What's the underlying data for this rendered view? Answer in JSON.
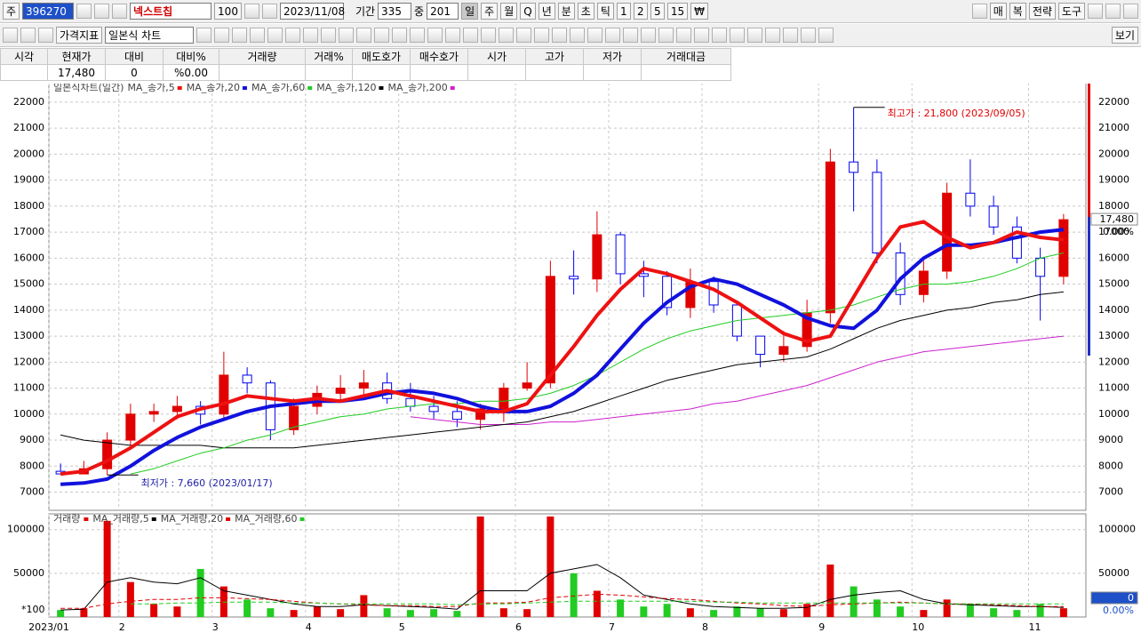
{
  "toolbar": {
    "code_label": "주",
    "code": "396270",
    "name": "넥스트칩",
    "count": "100",
    "date": "2023/11/08",
    "period_label": "기간",
    "period": "335",
    "mid_label": "중",
    "mid": "201",
    "periods": [
      "일",
      "주",
      "월",
      "Q",
      "년",
      "분",
      "초",
      "틱",
      "1",
      "2",
      "5",
      "15",
      "₩"
    ],
    "right_buttons": [
      "매",
      "복",
      "전략",
      "도구"
    ],
    "indicator_button": "가격지표",
    "chart_type": "일본식 차트",
    "view_button": "보기"
  },
  "quote_table": {
    "headers": [
      "시각",
      "현재가",
      "대비",
      "대비%",
      "거래량",
      "거래%",
      "매도호가",
      "매수호가",
      "시가",
      "고가",
      "저가",
      "거래대금"
    ],
    "values": [
      "17,480",
      "0",
      "%0.00"
    ]
  },
  "chart_data": [
    {
      "type": "candlestick",
      "title": "일본식차트(일간)",
      "open": [
        7800,
        7700,
        7900,
        9000,
        10000,
        10100,
        10300,
        10000,
        11500,
        11200,
        9400,
        10300,
        10800,
        11000,
        11200,
        10600,
        10300,
        10100,
        9800,
        10200,
        11000,
        11200,
        15300,
        15200,
        16900,
        15400,
        15300,
        14100,
        15100,
        14200,
        13000,
        12300,
        12600,
        13900,
        19700,
        19300,
        16200,
        14600,
        15500,
        18500,
        18000,
        17200,
        16000,
        15300
      ],
      "high": [
        8100,
        8200,
        9300,
        10400,
        10400,
        10700,
        10500,
        12400,
        11800,
        11300,
        10600,
        11100,
        11500,
        11700,
        11600,
        11200,
        10700,
        10500,
        10400,
        11200,
        12000,
        15900,
        16300,
        17800,
        17000,
        15900,
        15500,
        15600,
        15300,
        14300,
        13000,
        13200,
        14400,
        20200,
        21800,
        19800,
        16600,
        15900,
        18900,
        19800,
        18400,
        17600,
        16400,
        17700
      ],
      "low": [
        7700,
        7700,
        7660,
        8800,
        9700,
        9800,
        9600,
        9800,
        10800,
        9000,
        9200,
        10000,
        10500,
        10700,
        10400,
        10100,
        9800,
        9500,
        9400,
        9700,
        10900,
        11000,
        14600,
        14700,
        15000,
        14500,
        13800,
        13700,
        13900,
        12800,
        11800,
        12000,
        12400,
        13500,
        17800,
        15800,
        14200,
        14300,
        15200,
        17600,
        16900,
        15800,
        13600,
        15000
      ],
      "close": [
        7700,
        7900,
        9000,
        10000,
        10100,
        10300,
        10000,
        11500,
        11200,
        9400,
        10300,
        10800,
        11000,
        11200,
        10600,
        10300,
        10100,
        9800,
        10200,
        11000,
        11200,
        15300,
        15200,
        16900,
        15400,
        15300,
        14100,
        15100,
        14200,
        13000,
        12300,
        12600,
        13900,
        19700,
        19300,
        16200,
        14600,
        15500,
        18500,
        18000,
        17200,
        16000,
        15300,
        17480
      ],
      "up_color": "#e00000",
      "down_color": "#0000ee",
      "series": [
        {
          "name": "MA_종가,5",
          "color": "#ee1111",
          "width": 4,
          "values": [
            7700,
            7800,
            8200,
            8700,
            9300,
            9900,
            10200,
            10400,
            10700,
            10600,
            10500,
            10600,
            10500,
            10700,
            10900,
            10700,
            10500,
            10300,
            10100,
            10100,
            10400,
            11500,
            12600,
            13800,
            14800,
            15600,
            15400,
            15100,
            14800,
            14300,
            13700,
            13100,
            12800,
            13000,
            14500,
            16000,
            17200,
            17400,
            16800,
            16400,
            16600,
            17000,
            16800,
            16700
          ]
        },
        {
          "name": "MA_종가,20",
          "color": "#1111dd",
          "width": 4,
          "values": [
            7300,
            7350,
            7500,
            8000,
            8600,
            9100,
            9500,
            9800,
            10100,
            10300,
            10400,
            10500,
            10500,
            10600,
            10800,
            10900,
            10800,
            10600,
            10300,
            10100,
            10100,
            10300,
            10800,
            11500,
            12500,
            13500,
            14300,
            14900,
            15200,
            15000,
            14600,
            14200,
            13700,
            13400,
            13300,
            14000,
            15200,
            16000,
            16500,
            16500,
            16600,
            16800,
            17000,
            17100
          ]
        },
        {
          "name": "MA_종가,60",
          "color": "#22cc22",
          "width": 1,
          "values": [
            null,
            null,
            null,
            7700,
            7900,
            8200,
            8500,
            8700,
            9000,
            9200,
            9500,
            9700,
            9900,
            10000,
            10200,
            10300,
            10400,
            10400,
            10500,
            10500,
            10600,
            10800,
            11100,
            11500,
            12000,
            12500,
            12900,
            13200,
            13400,
            13600,
            13700,
            13800,
            13900,
            14000,
            14200,
            14500,
            14800,
            15000,
            15000,
            15100,
            15300,
            15600,
            16000,
            16200
          ]
        },
        {
          "name": "MA_종가,120",
          "color": "#000000",
          "width": 1,
          "values": [
            9200,
            9000,
            8900,
            8800,
            8800,
            8800,
            8800,
            8700,
            8700,
            8700,
            8700,
            8800,
            8900,
            9000,
            9100,
            9200,
            9300,
            9400,
            9500,
            9600,
            9700,
            9900,
            10100,
            10400,
            10700,
            11000,
            11300,
            11500,
            11700,
            11900,
            12000,
            12100,
            12200,
            12500,
            12900,
            13300,
            13600,
            13800,
            14000,
            14100,
            14300,
            14400,
            14600,
            14700
          ]
        },
        {
          "name": "MA_종가,200",
          "color": "#cc22cc",
          "width": 1,
          "values": [
            null,
            null,
            null,
            null,
            null,
            null,
            null,
            null,
            null,
            null,
            null,
            null,
            null,
            null,
            null,
            9900,
            9800,
            9700,
            9600,
            9600,
            9600,
            9700,
            9700,
            9800,
            9900,
            10000,
            10100,
            10200,
            10400,
            10500,
            10700,
            10900,
            11100,
            11400,
            11700,
            12000,
            12200,
            12400,
            12500,
            12600,
            12700,
            12800,
            12900,
            13000
          ]
        }
      ],
      "ylim": [
        6300,
        22750
      ],
      "yticks": [
        7000,
        8000,
        9000,
        10000,
        11000,
        12000,
        13000,
        14000,
        15000,
        16000,
        17000,
        18000,
        19000,
        20000,
        21000,
        22000
      ],
      "grid": true,
      "annotations": [
        {
          "text": "최고가 : 21,800 (2023/09/05)",
          "index": 34,
          "value": 21800,
          "color": "#e00000"
        },
        {
          "text": "최저가 : 7,660 (2023/01/17)",
          "index": 2,
          "value": 7660,
          "color": "#2222aa"
        }
      ],
      "current_label": "17,480",
      "change_label": "0.00%"
    },
    {
      "type": "bar",
      "title": "거래량",
      "categories": [
        "2023/01",
        null,
        null,
        "2",
        null,
        null,
        null,
        "3",
        null,
        null,
        null,
        "4",
        null,
        null,
        null,
        "5",
        null,
        null,
        null,
        null,
        "6",
        null,
        null,
        null,
        "7",
        null,
        null,
        null,
        "8",
        null,
        null,
        null,
        null,
        "9",
        null,
        null,
        null,
        "10",
        null,
        null,
        null,
        null,
        "11",
        null
      ],
      "values": [
        8000,
        10000,
        110000,
        40000,
        15000,
        12000,
        55000,
        35000,
        20000,
        10000,
        8000,
        12000,
        9000,
        25000,
        10000,
        8000,
        9000,
        7000,
        115000,
        10000,
        9000,
        115000,
        50000,
        30000,
        20000,
        12000,
        15000,
        10000,
        8000,
        12000,
        10000,
        9000,
        15000,
        60000,
        35000,
        20000,
        12000,
        8000,
        20000,
        15000,
        10000,
        8000,
        15000,
        10000
      ],
      "color": "#e00000",
      "up_color": "#e00000",
      "down_color": "#22cc22",
      "series": [
        {
          "name": "MA_거래량,5",
          "color": "#000000",
          "values": [
            8000,
            9000,
            40000,
            45000,
            40000,
            38000,
            45000,
            30000,
            25000,
            20000,
            15000,
            12000,
            12000,
            14000,
            13000,
            12000,
            11000,
            9000,
            30000,
            30000,
            30000,
            50000,
            55000,
            60000,
            45000,
            25000,
            20000,
            15000,
            12000,
            11000,
            10000,
            10000,
            11000,
            20000,
            25000,
            28000,
            30000,
            20000,
            15000,
            14000,
            13000,
            12000,
            12000,
            11000
          ]
        },
        {
          "name": "MA_거래량,20",
          "color": "#e00000",
          "values": [
            10000,
            10000,
            15000,
            18000,
            20000,
            20000,
            22000,
            22000,
            21000,
            20000,
            18000,
            16000,
            15000,
            14000,
            13000,
            13000,
            12000,
            12000,
            16000,
            16000,
            17000,
            22000,
            24000,
            26000,
            25000,
            23000,
            21000,
            20000,
            18000,
            16000,
            15000,
            13000,
            12000,
            14000,
            15000,
            16000,
            17000,
            16000,
            15000,
            15000,
            14000,
            13000,
            12000,
            12000
          ]
        },
        {
          "name": "MA_거래량,60",
          "color": "#22cc22",
          "values": [
            null,
            null,
            null,
            15000,
            15000,
            16000,
            16000,
            17000,
            17000,
            17000,
            16000,
            16000,
            15000,
            15000,
            15000,
            15000,
            15000,
            14000,
            15000,
            15000,
            16000,
            17000,
            18000,
            18000,
            18000,
            18000,
            18000,
            18000,
            17000,
            17000,
            16000,
            16000,
            16000,
            16000,
            16000,
            16000,
            16000,
            16000,
            15000,
            15000,
            15000,
            15000,
            15000,
            15000
          ]
        }
      ],
      "ylim": [
        0,
        118000
      ],
      "yticks": [
        50000,
        100000
      ],
      "unit_label": "*100",
      "grid": true,
      "current_label": "0",
      "change_label": "0.00%"
    }
  ]
}
